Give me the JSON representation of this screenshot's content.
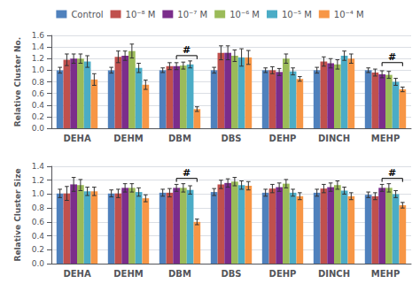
{
  "chart_data": [
    {
      "type": "bar",
      "categories": [
        "DEHA",
        "DEHM",
        "DBM",
        "DBS",
        "DEHP",
        "DINCH",
        "MEHP"
      ],
      "series": [
        {
          "name": "Control",
          "color": "#4f81bd",
          "values": [
            1.0,
            1.0,
            1.0,
            1.0,
            1.0,
            1.0,
            1.0
          ],
          "errors": [
            0.05,
            0.05,
            0.04,
            0.05,
            0.04,
            0.05,
            0.04
          ]
        },
        {
          "name": "10⁻⁸ M",
          "color": "#c0504d",
          "values": [
            1.18,
            1.23,
            1.07,
            1.3,
            1.0,
            1.15,
            0.96
          ],
          "errors": [
            0.1,
            0.1,
            0.06,
            0.12,
            0.06,
            0.08,
            0.06
          ]
        },
        {
          "name": "10⁻⁷ M",
          "color": "#7b2d8b",
          "values": [
            1.2,
            1.25,
            1.07,
            1.3,
            0.97,
            1.12,
            0.93
          ],
          "errors": [
            0.08,
            0.08,
            0.06,
            0.12,
            0.06,
            0.08,
            0.06
          ]
        },
        {
          "name": "10⁻⁶ M",
          "color": "#9bbb59",
          "values": [
            1.2,
            1.33,
            1.08,
            1.25,
            1.2,
            1.1,
            0.92
          ],
          "errors": [
            0.08,
            0.12,
            0.06,
            0.1,
            0.08,
            0.08,
            0.06
          ]
        },
        {
          "name": "10⁻⁵ M",
          "color": "#4bacc6",
          "values": [
            1.15,
            1.04,
            1.1,
            1.22,
            0.98,
            1.25,
            0.8
          ],
          "errors": [
            0.1,
            0.08,
            0.06,
            0.15,
            0.06,
            0.08,
            0.06
          ]
        },
        {
          "name": "10⁻⁴ M",
          "color": "#f79646",
          "values": [
            0.84,
            0.75,
            0.33,
            1.22,
            0.85,
            1.2,
            0.67
          ],
          "errors": [
            0.1,
            0.08,
            0.04,
            0.12,
            0.04,
            0.08,
            0.04
          ]
        }
      ],
      "ylabel": "Relative Cluster No.",
      "ylim": [
        0.0,
        1.6
      ],
      "yticks": [
        {
          "value": 0,
          "label": "0.0"
        },
        0.2,
        0.4,
        0.6,
        0.8,
        {
          "value": 1,
          "label": "1.0"
        },
        1.2,
        1.4,
        1.6
      ],
      "grid": true,
      "legend": "top",
      "annotations": [
        {
          "text": "#",
          "category": "DBM",
          "from": "10⁻⁷ M",
          "to": "10⁻⁴ M"
        },
        {
          "text": "#",
          "category": "MEHP",
          "from": "10⁻⁷ M",
          "to": "10⁻⁴ M"
        }
      ]
    },
    {
      "type": "bar",
      "categories": [
        "DEHA",
        "DEHM",
        "DBM",
        "DBS",
        "DEHP",
        "DINCH",
        "MEHP"
      ],
      "series": [
        {
          "name": "Control",
          "color": "#4f81bd",
          "values": [
            1.01,
            1.01,
            1.02,
            1.03,
            1.02,
            1.02,
            0.99
          ],
          "errors": [
            0.06,
            0.05,
            0.05,
            0.05,
            0.05,
            0.05,
            0.04
          ]
        },
        {
          "name": "10⁻⁸ M",
          "color": "#c0504d",
          "values": [
            1.01,
            1.01,
            1.02,
            1.14,
            1.08,
            1.08,
            0.97
          ],
          "errors": [
            0.1,
            0.06,
            0.06,
            0.06,
            0.06,
            0.06,
            0.05
          ]
        },
        {
          "name": "10⁻⁷ M",
          "color": "#7b2d8b",
          "values": [
            1.14,
            1.09,
            1.09,
            1.16,
            1.1,
            1.1,
            1.09
          ],
          "errors": [
            0.1,
            0.06,
            0.05,
            0.06,
            0.06,
            0.06,
            0.05
          ]
        },
        {
          "name": "10⁻⁶ M",
          "color": "#9bbb59",
          "values": [
            1.13,
            1.09,
            1.09,
            1.18,
            1.15,
            1.13,
            1.09
          ],
          "errors": [
            0.08,
            0.06,
            0.06,
            0.06,
            0.06,
            0.06,
            0.06
          ]
        },
        {
          "name": "10⁻⁵ M",
          "color": "#4bacc6",
          "values": [
            1.04,
            1.03,
            1.06,
            1.13,
            1.02,
            1.05,
            1.0
          ],
          "errors": [
            0.06,
            0.06,
            0.06,
            0.06,
            0.05,
            0.05,
            0.05
          ]
        },
        {
          "name": "10⁻⁴ M",
          "color": "#f79646",
          "values": [
            1.04,
            0.94,
            0.6,
            1.12,
            0.97,
            0.97,
            0.84
          ],
          "errors": [
            0.06,
            0.05,
            0.04,
            0.06,
            0.05,
            0.05,
            0.04
          ]
        }
      ],
      "ylabel": "Relative Cluster Size",
      "ylim": [
        0.0,
        1.4
      ],
      "yticks": [
        {
          "value": 0,
          "label": "0.0"
        },
        0.2,
        0.4,
        0.6,
        0.8,
        {
          "value": 1,
          "label": "1.0"
        },
        1.2,
        1.4
      ],
      "grid": true,
      "legend": "top",
      "annotations": [
        {
          "text": "#",
          "category": "DBM",
          "from": "10⁻⁷ M",
          "to": "10⁻⁴ M"
        },
        {
          "text": "#",
          "category": "MEHP",
          "from": "10⁻⁷ M",
          "to": "10⁻⁴ M"
        }
      ]
    }
  ]
}
